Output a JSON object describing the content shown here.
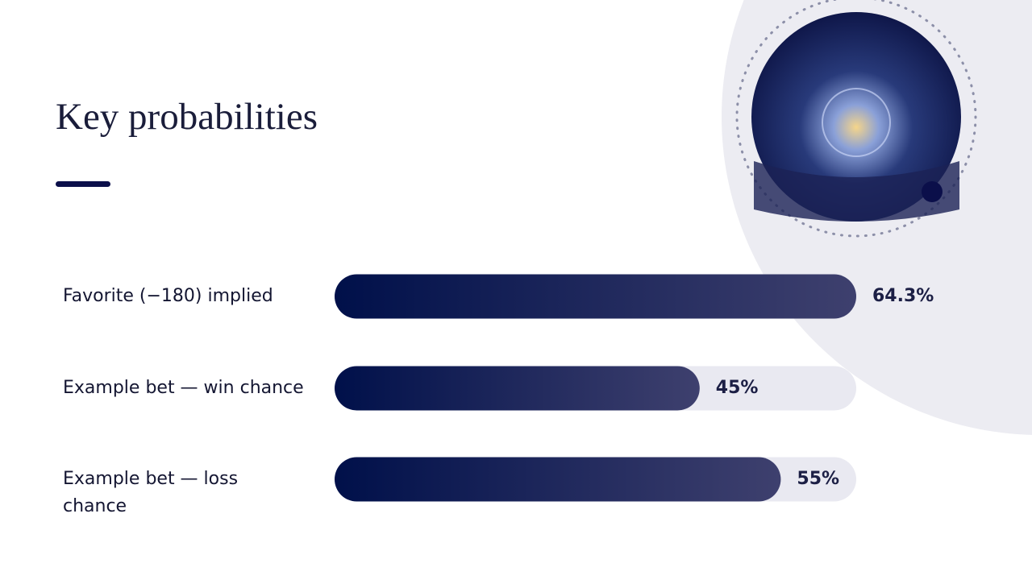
{
  "title": "Key probabilities",
  "chart_data": {
    "type": "bar",
    "orientation": "horizontal",
    "categories": [
      "Favorite (−180) implied",
      "Example bet — win chance",
      "Example bet — loss chance"
    ],
    "values": [
      64.3,
      45,
      55
    ],
    "value_labels": [
      "64.3%",
      "45%",
      "55%"
    ],
    "xlim": [
      0,
      64.3
    ],
    "color": "#1a1c5a"
  }
}
